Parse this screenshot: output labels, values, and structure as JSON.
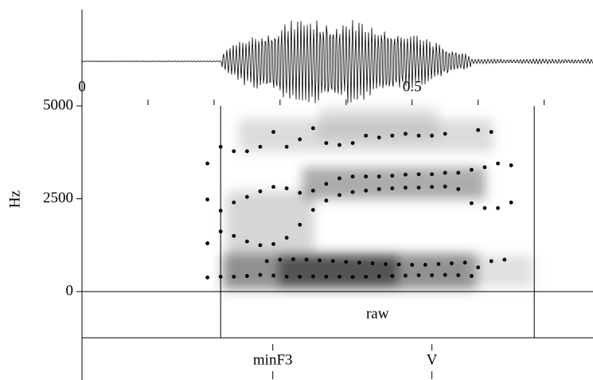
{
  "chart_data": {
    "type": "scatter",
    "y_label": "Hz",
    "xlim": [
      0,
      0.774
    ],
    "ylim": [
      0,
      5000
    ],
    "xticks": [
      0,
      0.5
    ],
    "xminorticks": [
      0.1,
      0.2,
      0.3,
      0.4,
      0.6,
      0.7
    ],
    "yticks": [
      0,
      2500,
      5000
    ],
    "series": [
      {
        "color": "#000000",
        "x": [
          0.19,
          0.21,
          0.23,
          0.25,
          0.27,
          0.29,
          0.31,
          0.33,
          0.35,
          0.37,
          0.39,
          0.41,
          0.43,
          0.45,
          0.47,
          0.49,
          0.51,
          0.53,
          0.55,
          0.57,
          0.59
        ],
        "y": [
          380,
          400,
          400,
          420,
          450,
          430,
          400,
          400,
          410,
          400,
          400,
          390,
          400,
          410,
          420,
          430,
          440,
          440,
          450,
          440,
          420
        ]
      },
      {
        "color": "#000000",
        "x": [
          0.28,
          0.3,
          0.32,
          0.34,
          0.36,
          0.38,
          0.4,
          0.42,
          0.44,
          0.46,
          0.48,
          0.5,
          0.52,
          0.54,
          0.56,
          0.58,
          0.6,
          0.62,
          0.64
        ],
        "y": [
          820,
          860,
          870,
          860,
          840,
          820,
          800,
          780,
          760,
          740,
          730,
          720,
          720,
          740,
          760,
          780,
          650,
          820,
          860
        ]
      },
      {
        "color": "#000000",
        "x": [
          0.19,
          0.21,
          0.23,
          0.25,
          0.27,
          0.29,
          0.31,
          0.33,
          0.35,
          0.37,
          0.39,
          0.41,
          0.43,
          0.45,
          0.47,
          0.49,
          0.51,
          0.53,
          0.55,
          0.57,
          0.59,
          0.61,
          0.63,
          0.65
        ],
        "y": [
          1300,
          1620,
          1500,
          1350,
          1250,
          1280,
          1450,
          1800,
          2200,
          2450,
          2600,
          2680,
          2720,
          2760,
          2780,
          2800,
          2800,
          2820,
          2830,
          2760,
          2380,
          2250,
          2250,
          2400
        ]
      },
      {
        "color": "#000000",
        "x": [
          0.19,
          0.21,
          0.23,
          0.25,
          0.27,
          0.29,
          0.31,
          0.33,
          0.35,
          0.37,
          0.39,
          0.41,
          0.43,
          0.45,
          0.47,
          0.49,
          0.51,
          0.53,
          0.55,
          0.57,
          0.59,
          0.61,
          0.63,
          0.65
        ],
        "y": [
          2480,
          2180,
          2400,
          2550,
          2700,
          2820,
          2780,
          2660,
          2720,
          2900,
          3050,
          3100,
          3100,
          3100,
          3120,
          3150,
          3160,
          3160,
          3200,
          3200,
          3280,
          3350,
          3450,
          3400
        ]
      },
      {
        "color": "#000000",
        "x": [
          0.19,
          0.21,
          0.23,
          0.25,
          0.27,
          0.29,
          0.31,
          0.33,
          0.35,
          0.37,
          0.39,
          0.41,
          0.43,
          0.45,
          0.47,
          0.49,
          0.51,
          0.53,
          0.55,
          0.6,
          0.62
        ],
        "y": [
          3450,
          3900,
          3780,
          3780,
          3900,
          4300,
          3900,
          4100,
          4400,
          4000,
          3950,
          4000,
          4200,
          4150,
          4200,
          4250,
          4200,
          4200,
          4250,
          4350,
          4300
        ]
      }
    ],
    "interval_tier": {
      "boundaries": [
        0.21,
        0.685
      ],
      "label": "raw"
    },
    "point_tier": [
      {
        "time": 0.289,
        "label": "minF3"
      },
      {
        "time": 0.53,
        "label": "V"
      }
    ]
  }
}
